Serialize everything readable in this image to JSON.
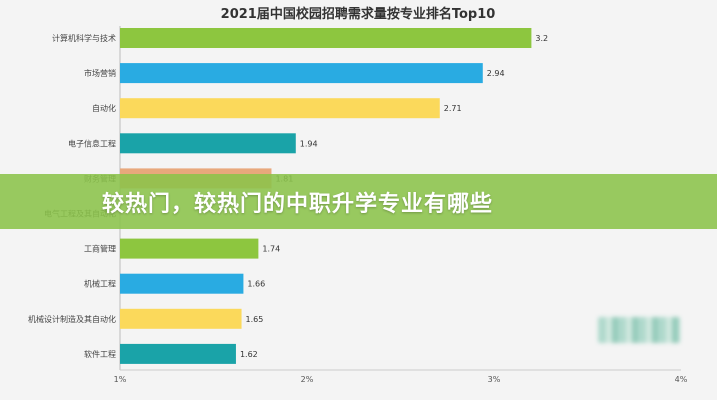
{
  "chart_data": {
    "type": "bar",
    "orientation": "horizontal",
    "title": "2021届中国校园招聘需求量按专业排名Top10",
    "categories": [
      "计算机科学与技术",
      "市场营销",
      "自动化",
      "电子信息工程",
      "财务管理",
      "电气工程及其自动化",
      "工商管理",
      "机械工程",
      "机械设计制造及其自动化",
      "软件工程"
    ],
    "values": [
      3.2,
      2.94,
      2.71,
      1.94,
      1.81,
      null,
      1.74,
      1.66,
      1.65,
      1.62
    ],
    "value_labels": [
      "3.2",
      "2.94",
      "2.71",
      "1.94",
      "1.81",
      "",
      "1.74",
      "1.66",
      "1.65",
      "1.62"
    ],
    "bar_colors": [
      "#8dc63f",
      "#29abe2",
      "#fbd95b",
      "#1aa3a8",
      "#e8a87c",
      "#8dc63f",
      "#8dc63f",
      "#29abe2",
      "#fbd95b",
      "#1aa3a8"
    ],
    "xlim": [
      1,
      4
    ],
    "x_ticks": [
      "1%",
      "2%",
      "3%",
      "4%"
    ],
    "xlabel": "",
    "ylabel": "",
    "grid": false,
    "legend": "none"
  },
  "banner": {
    "text": "较热门，较热门的中职升学专业有哪些"
  }
}
